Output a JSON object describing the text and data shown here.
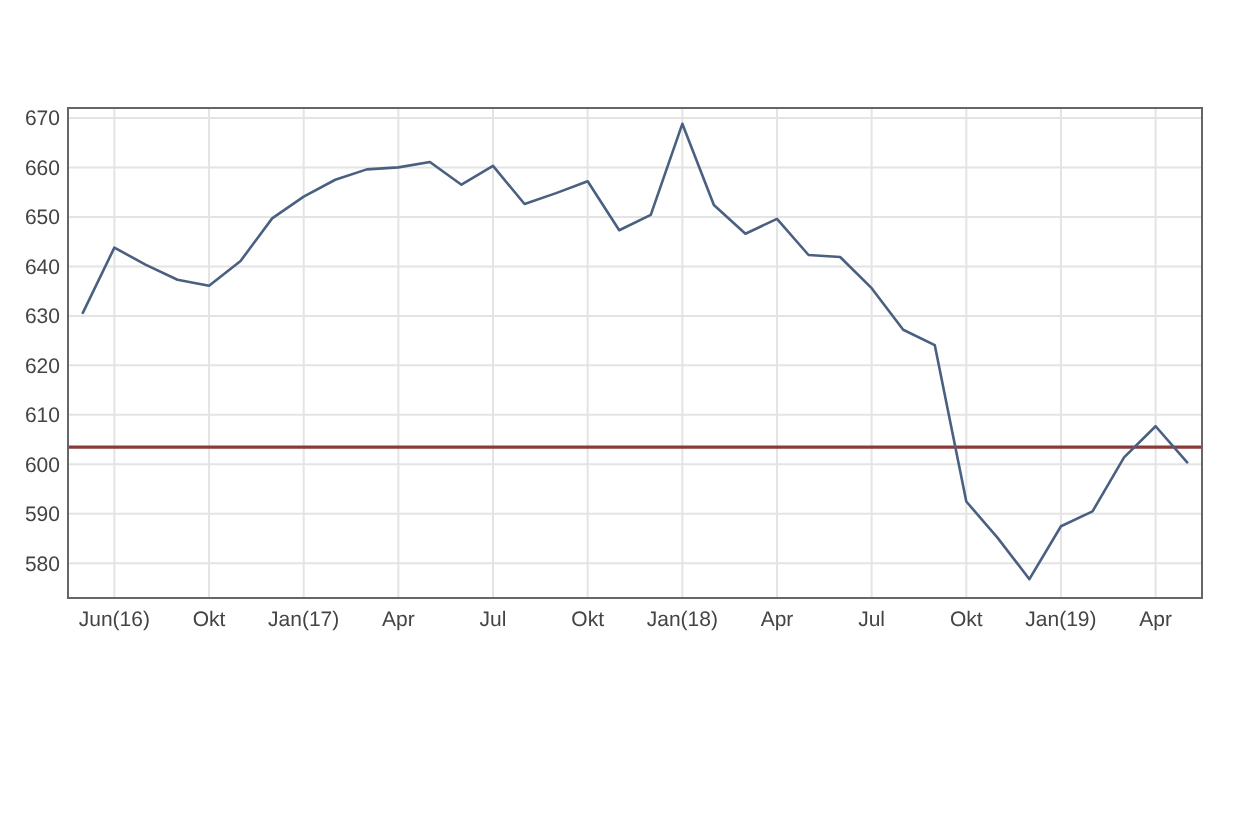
{
  "chart_data": {
    "type": "line",
    "categories": [
      null,
      "Jun(16)",
      null,
      null,
      "Okt",
      null,
      null,
      "Jan(17)",
      null,
      null,
      "Apr",
      null,
      null,
      "Jul",
      null,
      null,
      "Okt",
      null,
      null,
      "Jan(18)",
      null,
      null,
      "Apr",
      null,
      null,
      "Jul",
      null,
      null,
      "Okt",
      null,
      null,
      "Jan(19)",
      null,
      null,
      "Apr",
      null
    ],
    "series": [
      {
        "color": "#4a6080",
        "values": [
          630.6,
          643.8,
          640.3,
          637.3,
          636.1,
          641.1,
          649.7,
          654.1,
          657.5,
          659.6,
          660.0,
          661.1,
          656.5,
          660.3,
          652.6,
          654.8,
          657.2,
          647.3,
          650.4,
          668.8,
          652.4,
          646.6,
          649.6,
          642.3,
          641.9,
          635.6,
          627.2,
          624.1,
          592.5,
          585.1,
          576.8,
          587.5,
          590.5,
          601.4,
          607.7,
          600.4
        ]
      }
    ],
    "ylim": [
      573,
      672
    ],
    "yticks": [
      580,
      590,
      600,
      610,
      620,
      630,
      640,
      650,
      660,
      670
    ],
    "ref_lines": [
      {
        "axis": "y",
        "value": 603.5,
        "color": "#8b3a3a"
      }
    ],
    "grid": true,
    "marker": "none",
    "line_style": "solid"
  }
}
